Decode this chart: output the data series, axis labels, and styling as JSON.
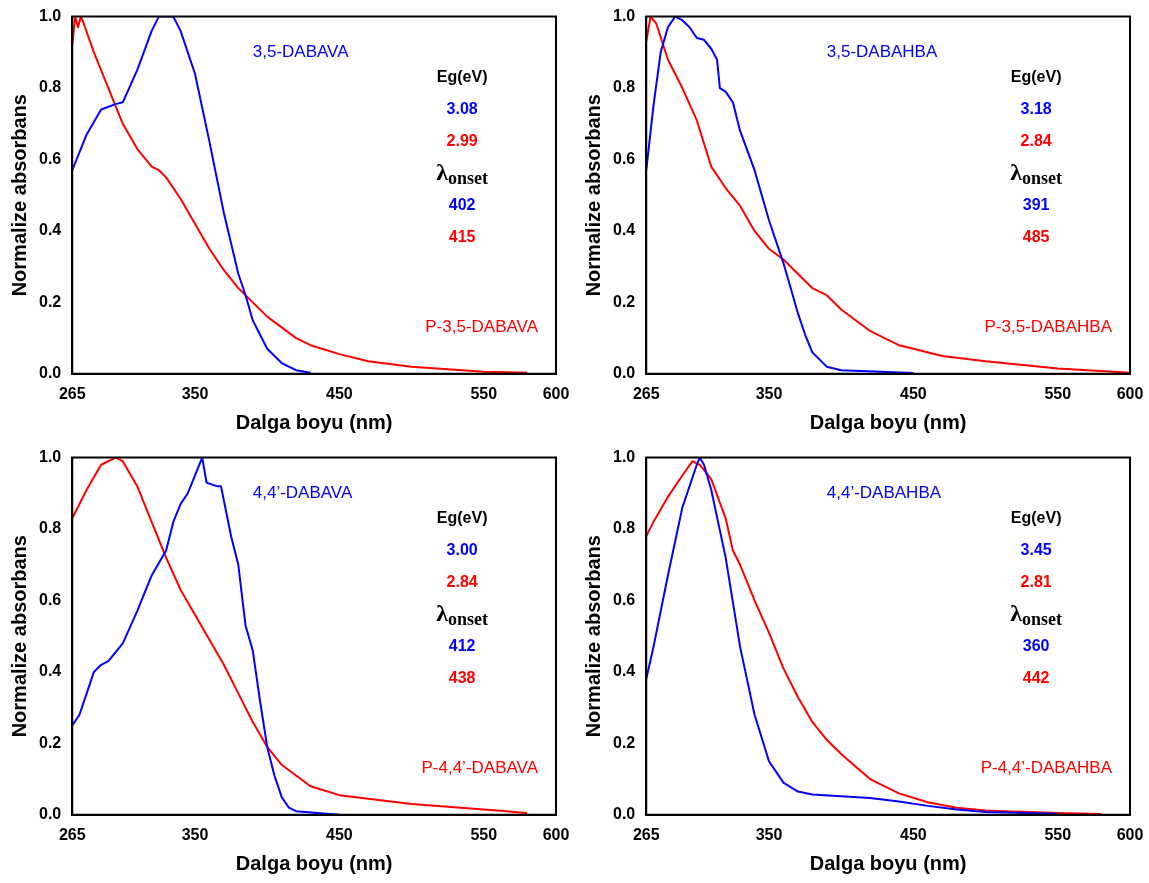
{
  "chart_data": [
    {
      "type": "line",
      "xlabel": "Dalga boyu (nm)",
      "ylabel": "Normalize absorbans",
      "xlim": [
        265,
        600
      ],
      "xticks": [
        265,
        350,
        450,
        550,
        600
      ],
      "ylim": [
        0,
        1.0
      ],
      "yticks": [
        {
          "value": 0,
          "label": "0.0"
        },
        {
          "value": 0.2,
          "label": "0.2"
        },
        {
          "value": 0.4,
          "label": "0.4"
        },
        {
          "value": 0.6,
          "label": "0.6"
        },
        {
          "value": 0.8,
          "label": "0.8"
        },
        {
          "value": 1.0,
          "label": "1.0"
        }
      ],
      "grid": false,
      "legend": false,
      "marker": "none",
      "line_style": "solid",
      "annotations": [
        "Eg(eV)",
        "3.08",
        "2.99",
        "λ$_{onset}$",
        "402",
        "415"
      ],
      "series": [
        {
          "name": "3,5-DABAVA",
          "color": "#0000ff",
          "x": [
            265,
            275,
            285,
            295,
            300,
            310,
            320,
            325,
            335,
            340,
            350,
            360,
            370,
            380,
            385,
            390,
            400,
            410,
            420,
            430
          ],
          "values": [
            0.57,
            0.67,
            0.74,
            0.755,
            0.76,
            0.85,
            0.96,
            1.0,
            1.0,
            0.96,
            0.84,
            0.65,
            0.45,
            0.28,
            0.22,
            0.15,
            0.07,
            0.03,
            0.01,
            0.003
          ]
        },
        {
          "name": "P-3,5-DABAVA",
          "color": "#ff0000",
          "x": [
            265,
            267,
            269,
            271,
            273,
            280,
            290,
            300,
            310,
            320,
            325,
            330,
            340,
            350,
            360,
            370,
            380,
            390,
            400,
            410,
            420,
            430,
            450,
            470,
            500,
            550,
            580
          ],
          "values": [
            0.92,
            1.0,
            0.97,
            1.0,
            0.98,
            0.9,
            0.8,
            0.7,
            0.63,
            0.58,
            0.57,
            0.55,
            0.49,
            0.42,
            0.35,
            0.29,
            0.24,
            0.2,
            0.16,
            0.13,
            0.1,
            0.08,
            0.055,
            0.035,
            0.02,
            0.006,
            0.003
          ]
        }
      ]
    },
    {
      "type": "line",
      "xlabel": "Dalga boyu (nm)",
      "ylabel": "Normalize absorbans",
      "xlim": [
        265,
        600
      ],
      "xticks": [
        265,
        350,
        450,
        550,
        600
      ],
      "ylim": [
        0,
        1.0
      ],
      "yticks": [
        {
          "value": 0,
          "label": "0.0"
        },
        {
          "value": 0.2,
          "label": "0.2"
        },
        {
          "value": 0.4,
          "label": "0.4"
        },
        {
          "value": 0.6,
          "label": "0.6"
        },
        {
          "value": 0.8,
          "label": "0.8"
        },
        {
          "value": 1.0,
          "label": "1.0"
        }
      ],
      "grid": false,
      "legend": false,
      "marker": "none",
      "line_style": "solid",
      "annotations": [
        "Eg(eV)",
        "3.18",
        "2.84",
        "λ$_{onset}$",
        "391",
        "485"
      ],
      "series": [
        {
          "name": "3,5-DABAHBA",
          "color": "#0000ff",
          "x": [
            265,
            270,
            275,
            280,
            285,
            290,
            295,
            300,
            305,
            310,
            314,
            316,
            320,
            325,
            330,
            340,
            350,
            360,
            365,
            370,
            375,
            380,
            390,
            400,
            450
          ],
          "values": [
            0.57,
            0.75,
            0.9,
            0.97,
            1.0,
            0.99,
            0.97,
            0.94,
            0.935,
            0.91,
            0.88,
            0.8,
            0.79,
            0.76,
            0.68,
            0.57,
            0.43,
            0.31,
            0.24,
            0.17,
            0.11,
            0.06,
            0.02,
            0.01,
            0.002
          ]
        },
        {
          "name": "P-3,5-DABAHBA",
          "color": "#ff0000",
          "x": [
            265,
            268,
            272,
            280,
            290,
            300,
            310,
            320,
            330,
            340,
            350,
            360,
            370,
            380,
            390,
            400,
            410,
            420,
            430,
            440,
            450,
            470,
            500,
            550,
            600
          ],
          "values": [
            0.93,
            1.0,
            0.98,
            0.88,
            0.8,
            0.71,
            0.58,
            0.52,
            0.47,
            0.4,
            0.35,
            0.32,
            0.28,
            0.24,
            0.22,
            0.18,
            0.15,
            0.12,
            0.1,
            0.08,
            0.07,
            0.05,
            0.035,
            0.015,
            0.003
          ]
        }
      ]
    },
    {
      "type": "line",
      "xlabel": "Dalga boyu (nm)",
      "ylabel": "Normalize absorbans",
      "xlim": [
        265,
        600
      ],
      "xticks": [
        265,
        350,
        450,
        550,
        600
      ],
      "ylim": [
        0,
        1.0
      ],
      "yticks": [
        {
          "value": 0,
          "label": "0.0"
        },
        {
          "value": 0.2,
          "label": "0.2"
        },
        {
          "value": 0.4,
          "label": "0.4"
        },
        {
          "value": 0.6,
          "label": "0.6"
        },
        {
          "value": 0.8,
          "label": "0.8"
        },
        {
          "value": 1.0,
          "label": "1.0"
        }
      ],
      "grid": false,
      "legend": false,
      "marker": "none",
      "line_style": "solid",
      "annotations": [
        "Eg(eV)",
        "3.00",
        "2.84",
        "λ$_{onset}$",
        "412",
        "438"
      ],
      "series": [
        {
          "name": "4,4’-DABAVA",
          "color": "#0000ff",
          "x": [
            265,
            270,
            275,
            280,
            285,
            290,
            300,
            310,
            320,
            330,
            335,
            340,
            345,
            350,
            355,
            358,
            365,
            368,
            370,
            375,
            380,
            385,
            390,
            395,
            400,
            405,
            410,
            415,
            420,
            450
          ],
          "values": [
            0.25,
            0.28,
            0.34,
            0.4,
            0.42,
            0.43,
            0.48,
            0.57,
            0.67,
            0.74,
            0.82,
            0.87,
            0.9,
            0.95,
            1.0,
            0.93,
            0.92,
            0.92,
            0.88,
            0.78,
            0.7,
            0.53,
            0.46,
            0.32,
            0.19,
            0.11,
            0.05,
            0.02,
            0.01,
            0
          ]
        },
        {
          "name": "P-4,4’-DABAVA",
          "color": "#ff0000",
          "x": [
            265,
            275,
            285,
            295,
            300,
            310,
            320,
            330,
            340,
            350,
            360,
            370,
            380,
            390,
            400,
            410,
            420,
            430,
            450,
            480,
            500,
            550,
            580
          ],
          "values": [
            0.83,
            0.91,
            0.98,
            1.0,
            0.99,
            0.92,
            0.82,
            0.72,
            0.63,
            0.56,
            0.49,
            0.42,
            0.34,
            0.26,
            0.19,
            0.14,
            0.11,
            0.08,
            0.055,
            0.04,
            0.03,
            0.015,
            0.005
          ]
        }
      ]
    },
    {
      "type": "line",
      "xlabel": "Dalga boyu (nm)",
      "ylabel": "Normalize absorbans",
      "xlim": [
        265,
        600
      ],
      "xticks": [
        265,
        350,
        450,
        550,
        600
      ],
      "ylim": [
        0,
        1.0
      ],
      "yticks": [
        {
          "value": 0,
          "label": "0.0"
        },
        {
          "value": 0.2,
          "label": "0.2"
        },
        {
          "value": 0.4,
          "label": "0.4"
        },
        {
          "value": 0.6,
          "label": "0.6"
        },
        {
          "value": 0.8,
          "label": "0.8"
        },
        {
          "value": 1.0,
          "label": "1.0"
        }
      ],
      "grid": false,
      "legend": false,
      "marker": "none",
      "line_style": "solid",
      "annotations": [
        "Eg(eV)",
        "3.45",
        "2.81",
        "λ$_{onset}$",
        "360",
        "442"
      ],
      "series": [
        {
          "name": "4,4’-DABAHBA",
          "color": "#0000ff",
          "x": [
            265,
            270,
            280,
            290,
            300,
            302,
            305,
            310,
            320,
            330,
            340,
            350,
            360,
            370,
            380,
            400,
            420,
            440,
            460,
            480,
            500,
            550
          ],
          "values": [
            0.38,
            0.47,
            0.67,
            0.86,
            0.98,
            1.0,
            0.98,
            0.91,
            0.72,
            0.47,
            0.28,
            0.15,
            0.09,
            0.065,
            0.057,
            0.052,
            0.047,
            0.037,
            0.025,
            0.015,
            0.008,
            0.003
          ]
        },
        {
          "name": "P-4,4’-DABAHBA",
          "color": "#ff0000",
          "x": [
            265,
            270,
            280,
            290,
            297,
            302,
            310,
            320,
            325,
            330,
            340,
            350,
            360,
            370,
            380,
            390,
            400,
            420,
            440,
            460,
            480,
            500,
            550,
            580
          ],
          "values": [
            0.78,
            0.82,
            0.89,
            0.95,
            0.99,
            0.98,
            0.94,
            0.83,
            0.74,
            0.7,
            0.6,
            0.51,
            0.41,
            0.33,
            0.26,
            0.21,
            0.17,
            0.1,
            0.06,
            0.035,
            0.02,
            0.012,
            0.005,
            0.002
          ]
        }
      ]
    }
  ]
}
